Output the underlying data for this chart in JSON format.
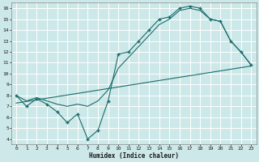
{
  "xlabel": "Humidex (Indice chaleur)",
  "bg_color": "#cde8e8",
  "grid_color": "#ffffff",
  "line_color": "#1a6b6b",
  "xlim": [
    -0.5,
    23.5
  ],
  "ylim": [
    3.5,
    16.5
  ],
  "xticks": [
    0,
    1,
    2,
    3,
    4,
    5,
    6,
    7,
    8,
    9,
    10,
    11,
    12,
    13,
    14,
    15,
    16,
    17,
    18,
    19,
    20,
    21,
    22,
    23
  ],
  "yticks": [
    4,
    5,
    6,
    7,
    8,
    9,
    10,
    11,
    12,
    13,
    14,
    15,
    16
  ],
  "line1_x": [
    0,
    1,
    2,
    3,
    4,
    5,
    6,
    7,
    8,
    9,
    10,
    11,
    12,
    13,
    14,
    15,
    16,
    17,
    18,
    19,
    20,
    21,
    22,
    23
  ],
  "line1_y": [
    8.0,
    7.0,
    7.7,
    7.2,
    6.5,
    5.5,
    6.3,
    4.0,
    4.8,
    7.5,
    11.8,
    12.0,
    13.0,
    14.0,
    15.0,
    15.2,
    16.0,
    16.2,
    16.0,
    15.0,
    14.8,
    13.0,
    12.0,
    10.8
  ],
  "line2_x": [
    0,
    23
  ],
  "line2_y": [
    7.3,
    10.7
  ],
  "line3_x": [
    0,
    1,
    2,
    3,
    4,
    5,
    6,
    7,
    8,
    9,
    10,
    11,
    12,
    13,
    14,
    15,
    16,
    17,
    18,
    19,
    20,
    21,
    22,
    23
  ],
  "line3_y": [
    8.0,
    7.5,
    7.8,
    7.5,
    7.2,
    7.0,
    7.2,
    7.0,
    7.5,
    8.5,
    10.5,
    11.5,
    12.5,
    13.5,
    14.5,
    15.0,
    15.8,
    16.0,
    15.8,
    15.0,
    14.8,
    13.0,
    12.0,
    10.8
  ]
}
